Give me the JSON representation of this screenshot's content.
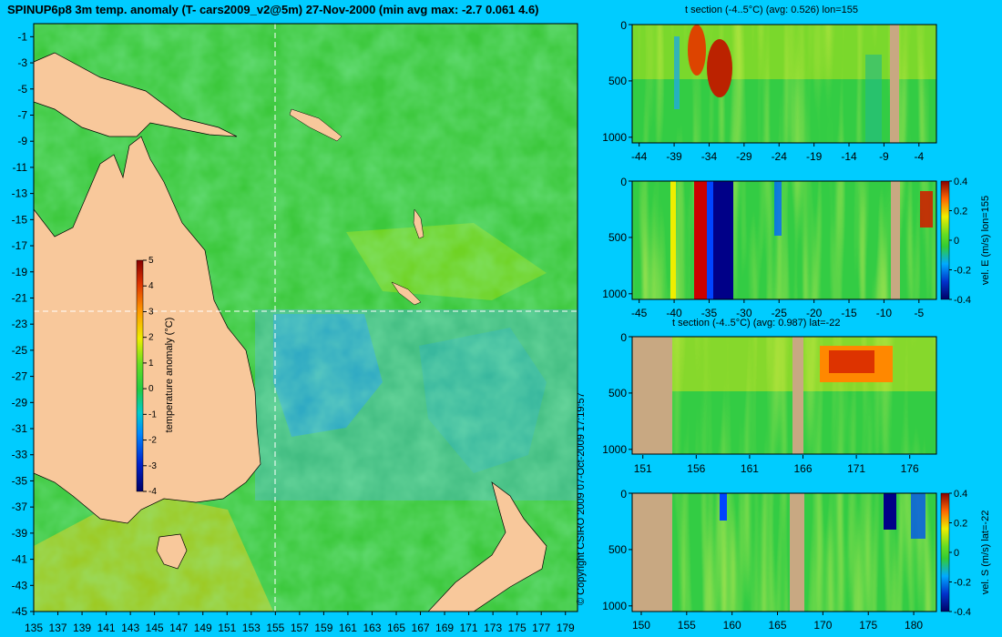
{
  "title": "SPINUP6p8 3m temp. anomaly (T- cars2009_v2@5m) 27-Nov-2000 (min avg max: -2.7 0.061 4.6)",
  "copyright": "© Copyright CSIRO 2009   07-Oct-2009 17:19:57",
  "colors": {
    "background": "#00ccff",
    "land": "#f8c89b",
    "section_land": "#c8a882",
    "ocean_green": "#3cc83c"
  },
  "chart_data": [
    {
      "type": "heatmap",
      "id": "map",
      "x_ticks": [
        "135",
        "137",
        "139",
        "141",
        "143",
        "145",
        "147",
        "149",
        "151",
        "153",
        "155",
        "157",
        "159",
        "161",
        "163",
        "165",
        "167",
        "169",
        "171",
        "173",
        "175",
        "177",
        "179"
      ],
      "y_ticks": [
        "-1",
        "-3",
        "-5",
        "-7",
        "-9",
        "-11",
        "-13",
        "-15",
        "-17",
        "-19",
        "-21",
        "-23",
        "-25",
        "-27",
        "-29",
        "-31",
        "-33",
        "-35",
        "-37",
        "-39",
        "-41",
        "-43",
        "-45"
      ],
      "xlim": [
        135,
        180
      ],
      "ylim": [
        -45,
        0
      ],
      "crosshair": {
        "lon": 155,
        "lat": -22
      },
      "colorbar": {
        "label": "temperature anomaly (°C)",
        "ticks": [
          "5",
          "4",
          "3",
          "2",
          "1",
          "0",
          "-1",
          "-2",
          "-3",
          "-4"
        ],
        "range": [
          -4,
          5
        ]
      }
    },
    {
      "type": "heatmap",
      "id": "t-section-lon",
      "title": "t section (-4..5°C) (avg: 0.526) lon=155",
      "x_ticks": [
        "-44",
        "-39",
        "-34",
        "-29",
        "-24",
        "-19",
        "-14",
        "-9",
        "-4"
      ],
      "y_ticks": [
        "0",
        "500",
        "1000"
      ]
    },
    {
      "type": "heatmap",
      "id": "vel-e-section",
      "x_ticks": [
        "-45",
        "-40",
        "-35",
        "-30",
        "-25",
        "-20",
        "-15",
        "-10",
        "-5"
      ],
      "y_ticks": [
        "0",
        "500",
        "1000"
      ],
      "colorbar": {
        "label": "vel. E (m/s) lon=155",
        "ticks": [
          "0.4",
          "0.2",
          "0",
          "-0.2",
          "-0.4"
        ],
        "range": [
          -0.4,
          0.4
        ]
      }
    },
    {
      "type": "heatmap",
      "id": "t-section-lat",
      "title": "t section (-4..5°C) (avg: 0.987) lat=-22",
      "x_ticks": [
        "151",
        "156",
        "161",
        "166",
        "171",
        "176"
      ],
      "y_ticks": [
        "0",
        "500",
        "1000"
      ]
    },
    {
      "type": "heatmap",
      "id": "vel-s-section",
      "x_ticks": [
        "150",
        "155",
        "160",
        "165",
        "170",
        "175",
        "180"
      ],
      "y_ticks": [
        "0",
        "500",
        "1000"
      ],
      "colorbar": {
        "label": "vel. S (m/s) lat=-22",
        "ticks": [
          "0.4",
          "0.2",
          "0",
          "-0.2",
          "-0.4"
        ],
        "range": [
          -0.4,
          0.4
        ]
      }
    }
  ]
}
